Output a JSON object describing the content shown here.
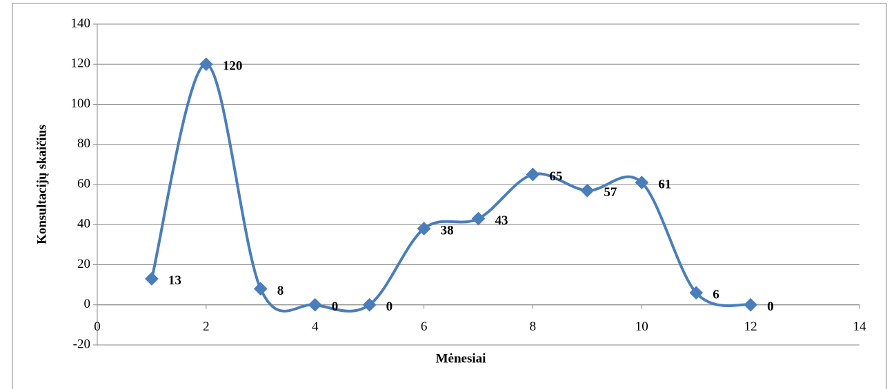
{
  "chart_data": {
    "type": "line",
    "smooth": true,
    "x_label": "Mėnesiai",
    "y_label": "Konsultacijų skaičius",
    "x": [
      1,
      2,
      3,
      4,
      5,
      6,
      7,
      8,
      9,
      10,
      11,
      12
    ],
    "values": [
      13,
      120,
      8,
      0,
      0,
      38,
      43,
      65,
      57,
      61,
      6,
      0
    ],
    "color": "#4a7ebb",
    "xlim": [
      0,
      14
    ],
    "xticks": [
      0,
      2,
      4,
      6,
      8,
      10,
      12,
      14
    ],
    "ylim": [
      -20,
      140
    ],
    "yticks": [
      -20,
      0,
      20,
      40,
      60,
      80,
      100,
      120,
      140
    ],
    "grid": true,
    "data_labels": true
  }
}
